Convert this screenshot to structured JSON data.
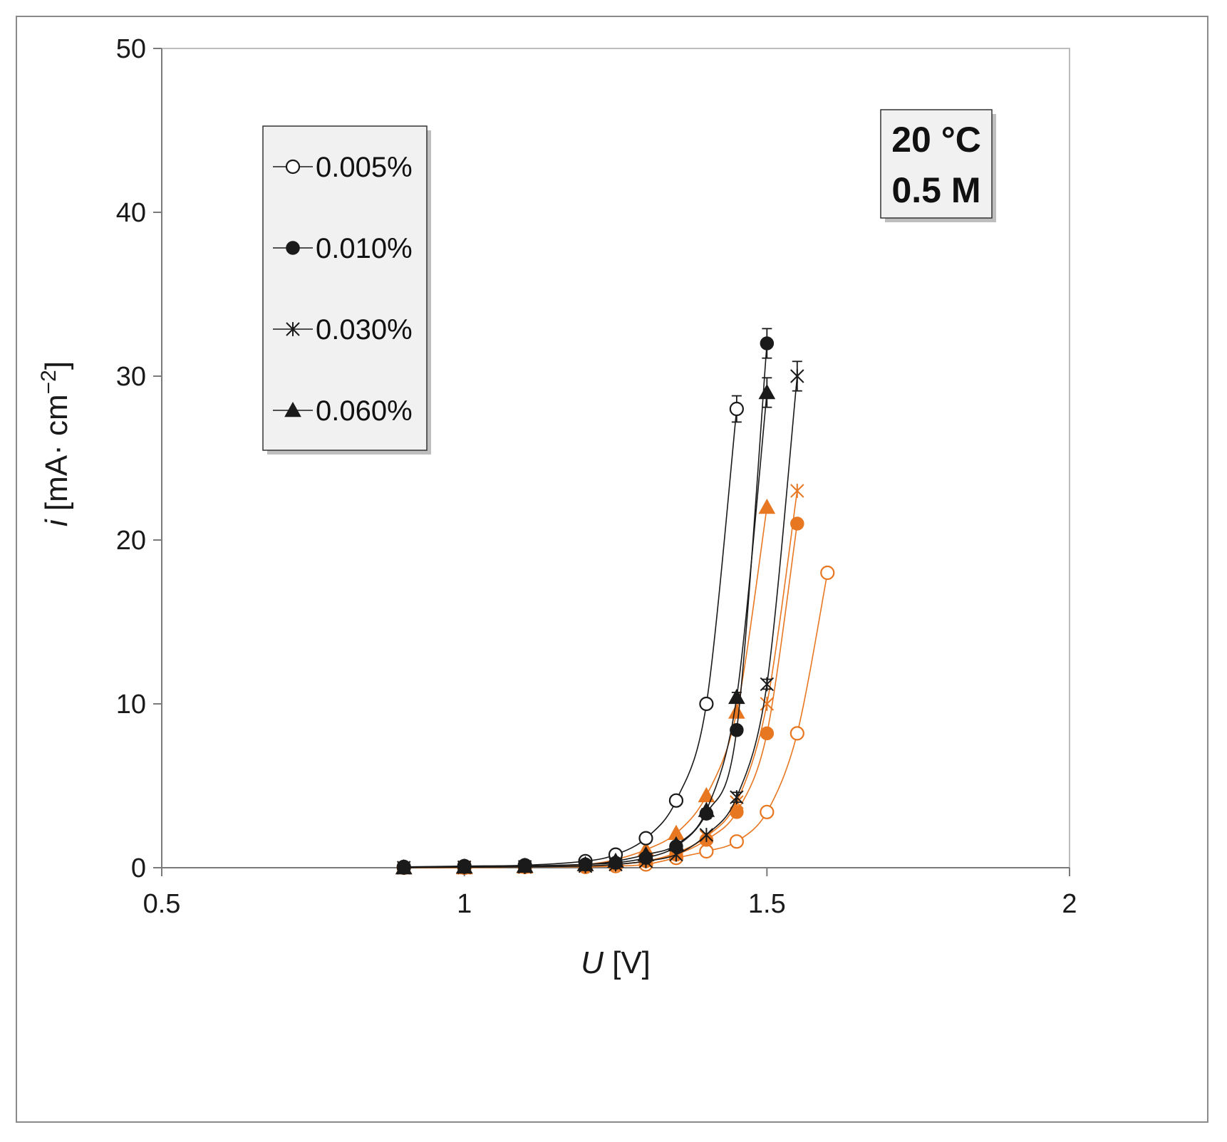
{
  "chart_data": {
    "type": "scatter",
    "title": "",
    "xlabel": "U",
    "xlabel_unit": " [V]",
    "ylabel": "i",
    "ylabel_unit": " [mA· cm",
    "ylabel_sup": "−2",
    "ylabel_close": "]",
    "xlim": [
      0.5,
      2
    ],
    "ylim": [
      0,
      50
    ],
    "x_ticks": [
      "0.5",
      "1",
      "1.5",
      "2"
    ],
    "y_ticks": [
      "0",
      "10",
      "20",
      "30",
      "40",
      "50"
    ],
    "grid": false,
    "legend_position": "top-left",
    "annotation": [
      "20 °C",
      "0.5 M"
    ],
    "series": [
      {
        "name": "0.005%",
        "marker": "open-circle",
        "color": "#1a1a1a",
        "x": [
          0.9,
          1.0,
          1.1,
          1.2,
          1.25,
          1.3,
          1.35,
          1.4,
          1.45
        ],
        "y": [
          0.05,
          0.1,
          0.15,
          0.4,
          0.8,
          1.8,
          4.1,
          10.0,
          28.0
        ],
        "err": [
          0,
          0,
          0,
          0,
          0,
          0,
          0,
          0,
          0.8
        ]
      },
      {
        "name": "0.010%",
        "marker": "filled-circle",
        "color": "#1a1a1a",
        "x": [
          0.9,
          1.0,
          1.1,
          1.2,
          1.25,
          1.3,
          1.35,
          1.4,
          1.45,
          1.5
        ],
        "y": [
          0.0,
          0.05,
          0.1,
          0.2,
          0.3,
          0.6,
          1.3,
          3.3,
          8.4,
          32.0
        ],
        "err": [
          0,
          0,
          0,
          0,
          0,
          0,
          0,
          0.3,
          0,
          0.9
        ]
      },
      {
        "name": "0.030%",
        "marker": "star",
        "color": "#1a1a1a",
        "x": [
          0.9,
          1.0,
          1.1,
          1.2,
          1.25,
          1.3,
          1.35,
          1.4,
          1.45,
          1.5,
          1.55
        ],
        "y": [
          0.0,
          0.03,
          0.05,
          0.1,
          0.2,
          0.4,
          0.8,
          2.0,
          4.3,
          11.2,
          30.0
        ],
        "err": [
          0,
          0,
          0,
          0,
          0,
          0,
          0,
          0,
          0.3,
          0.3,
          0.9
        ]
      },
      {
        "name": "0.060%",
        "marker": "filled-triangle",
        "color": "#1a1a1a",
        "x": [
          0.9,
          1.0,
          1.1,
          1.2,
          1.25,
          1.3,
          1.35,
          1.4,
          1.45,
          1.5
        ],
        "y": [
          0.0,
          0.05,
          0.1,
          0.2,
          0.4,
          0.8,
          1.4,
          3.5,
          10.4,
          29.0
        ],
        "err": [
          0,
          0,
          0,
          0,
          0,
          0,
          0,
          0,
          0.3,
          0.9
        ]
      },
      {
        "marker": "open-circle",
        "color": "#e87722",
        "x": [
          0.9,
          1.0,
          1.1,
          1.2,
          1.25,
          1.3,
          1.35,
          1.4,
          1.45,
          1.5,
          1.55,
          1.6
        ],
        "y": [
          0.0,
          0.0,
          0.05,
          0.05,
          0.1,
          0.2,
          0.6,
          1.0,
          1.6,
          3.4,
          8.2,
          18.0
        ],
        "err": [
          0,
          0,
          0,
          0,
          0,
          0,
          0,
          0,
          0,
          0,
          0,
          0
        ]
      },
      {
        "marker": "filled-circle",
        "color": "#e87722",
        "x": [
          0.9,
          1.0,
          1.1,
          1.2,
          1.25,
          1.3,
          1.35,
          1.4,
          1.45,
          1.5,
          1.55
        ],
        "y": [
          0.0,
          0.0,
          0.05,
          0.1,
          0.2,
          0.4,
          0.8,
          1.7,
          3.4,
          8.2,
          21.0
        ],
        "err": [
          0,
          0,
          0,
          0,
          0,
          0,
          0,
          0,
          0,
          0,
          0
        ]
      },
      {
        "marker": "star",
        "color": "#e87722",
        "x": [
          0.9,
          1.0,
          1.1,
          1.2,
          1.25,
          1.3,
          1.35,
          1.4,
          1.45,
          1.5,
          1.55
        ],
        "y": [
          0.0,
          0.0,
          0.05,
          0.1,
          0.2,
          0.4,
          0.9,
          1.9,
          4.0,
          10.0,
          23.0
        ],
        "err": [
          0,
          0,
          0,
          0,
          0,
          0,
          0,
          0,
          0,
          0,
          0
        ]
      },
      {
        "marker": "filled-triangle",
        "color": "#e87722",
        "x": [
          0.9,
          1.0,
          1.1,
          1.2,
          1.25,
          1.3,
          1.35,
          1.4,
          1.45,
          1.5
        ],
        "y": [
          0.0,
          0.0,
          0.05,
          0.2,
          0.5,
          1.1,
          2.1,
          4.4,
          9.5,
          22.0
        ],
        "err": [
          0,
          0,
          0,
          0,
          0,
          0,
          0,
          0,
          0,
          0
        ]
      }
    ]
  }
}
